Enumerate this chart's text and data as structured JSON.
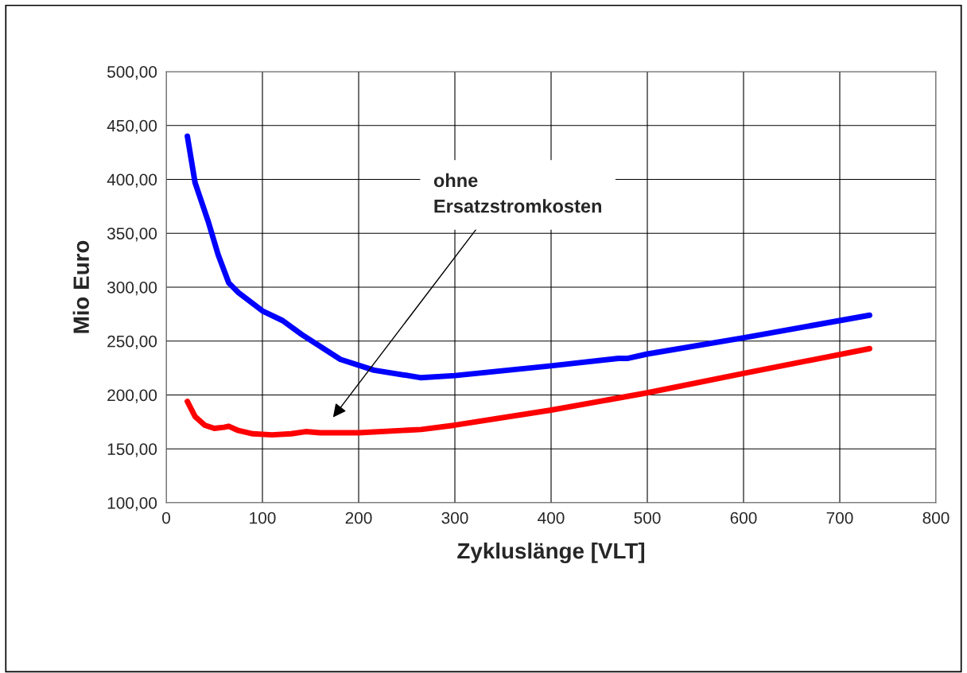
{
  "chart_data": {
    "type": "line",
    "xlabel": "Zykluslänge [VLT]",
    "ylabel": "Mio Euro",
    "xlim": [
      0,
      800
    ],
    "xticks": [
      0,
      100,
      200,
      300,
      400,
      500,
      600,
      700,
      800
    ],
    "ylim": [
      100,
      500
    ],
    "yticks": [
      {
        "value": 100,
        "label": "100,00"
      },
      {
        "value": 150,
        "label": "150,00"
      },
      {
        "value": 200,
        "label": "200,00"
      },
      {
        "value": 250,
        "label": "250,00"
      },
      {
        "value": 300,
        "label": "300,00"
      },
      {
        "value": 350,
        "label": "350,00"
      },
      {
        "value": 400,
        "label": "400,00"
      },
      {
        "value": 450,
        "label": "450,00"
      },
      {
        "value": 500,
        "label": "500,00"
      }
    ],
    "grid": true,
    "marker": "none",
    "line_style": "solid",
    "annotations": [
      "ohne\nErsatzstromkosten"
    ],
    "series": [
      {
        "color": "#0000ff",
        "x": [
          22,
          30,
          44,
          54,
          65,
          75,
          100,
          121,
          141,
          181,
          216,
          265,
          300,
          400,
          470,
          480,
          500,
          600,
          731
        ],
        "values": [
          440,
          397,
          360,
          330,
          304,
          295,
          278,
          269,
          256,
          233,
          223,
          216,
          218,
          227,
          234,
          234,
          238,
          253,
          274
        ]
      },
      {
        "color": "#ff0000",
        "x": [
          22,
          30,
          40,
          50,
          60,
          65,
          75,
          90,
          110,
          130,
          145,
          160,
          200,
          265,
          300,
          400,
          500,
          600,
          731
        ],
        "values": [
          194,
          180,
          172,
          169,
          170,
          171,
          167,
          164,
          163,
          164,
          166,
          165,
          165,
          168,
          172,
          186,
          202,
          220,
          243
        ]
      }
    ]
  }
}
